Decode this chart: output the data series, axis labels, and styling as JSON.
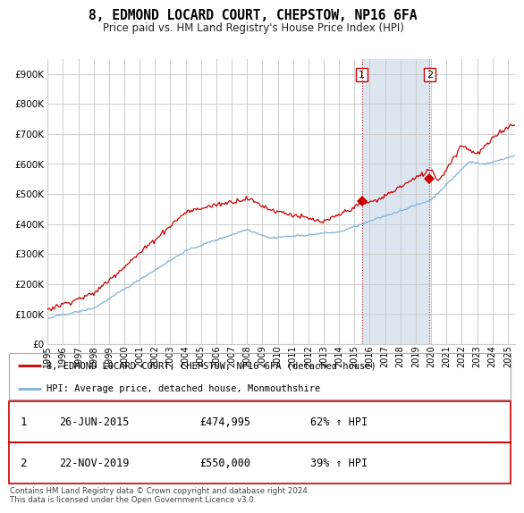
{
  "title": "8, EDMOND LOCARD COURT, CHEPSTOW, NP16 6FA",
  "subtitle": "Price paid vs. HM Land Registry's House Price Index (HPI)",
  "ytick_values": [
    0,
    100000,
    200000,
    300000,
    400000,
    500000,
    600000,
    700000,
    800000,
    900000
  ],
  "ylim": [
    0,
    950000
  ],
  "xlim_start": 1995.0,
  "xlim_end": 2025.5,
  "sale1_date": 2015.49,
  "sale1_price": 474995,
  "sale1_label": "1",
  "sale2_date": 2019.9,
  "sale2_price": 550000,
  "sale2_label": "2",
  "legend_red": "8, EDMOND LOCARD COURT, CHEPSTOW, NP16 6FA (detached house)",
  "legend_blue": "HPI: Average price, detached house, Monmouthshire",
  "footer": "Contains HM Land Registry data © Crown copyright and database right 2024.\nThis data is licensed under the Open Government Licence v3.0.",
  "highlight_color": "#dce6f1",
  "red_color": "#cc0000",
  "blue_color": "#7eb3d8",
  "grid_color": "#cccccc",
  "sale1_row": "26-JUN-2015",
  "sale1_price_str": "£474,995",
  "sale1_hpi": "62% ↑ HPI",
  "sale2_row": "22-NOV-2019",
  "sale2_price_str": "£550,000",
  "sale2_hpi": "39% ↑ HPI"
}
